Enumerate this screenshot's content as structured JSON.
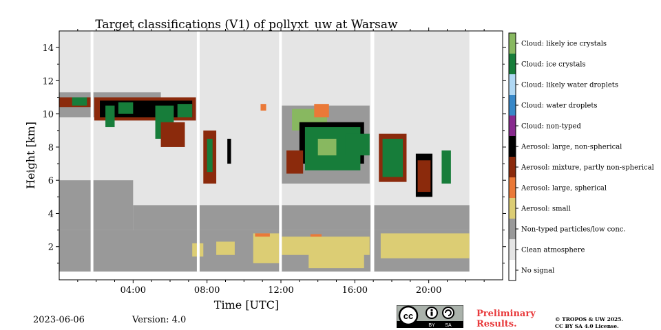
{
  "chart_data": {
    "type": "heatmap",
    "title": "Target classifications (V1) of pollyxt_uw at Warsaw",
    "xlabel": "Time [UTC]",
    "ylabel": "Height [km]",
    "xlim": [
      0,
      24
    ],
    "ylim": [
      0,
      15
    ],
    "xticks": [
      {
        "value": 4,
        "label": "04:00"
      },
      {
        "value": 8,
        "label": "08:00"
      },
      {
        "value": 12,
        "label": "12:00"
      },
      {
        "value": 16,
        "label": "16:00"
      },
      {
        "value": 20,
        "label": "20:00"
      }
    ],
    "yticks": [
      {
        "value": 2,
        "label": "2"
      },
      {
        "value": 4,
        "label": "4"
      },
      {
        "value": 6,
        "label": "6"
      },
      {
        "value": 8,
        "label": "8"
      },
      {
        "value": 10,
        "label": "10"
      },
      {
        "value": 12,
        "label": "12"
      },
      {
        "value": 14,
        "label": "14"
      }
    ],
    "classes": [
      {
        "label": "No signal",
        "color": "#ffffff"
      },
      {
        "label": "Clean atmosphere",
        "color": "#e5e5e5"
      },
      {
        "label": "Non-typed particles/low conc.",
        "color": "#999999"
      },
      {
        "label": "Aerosol: small",
        "color": "#dccd74"
      },
      {
        "label": "Aerosol: large, spherical",
        "color": "#ea7938"
      },
      {
        "label": "Aerosol: mixture, partly non-spherical",
        "color": "#8b2a0c"
      },
      {
        "label": "Aerosol: large, non-spherical",
        "color": "#000000"
      },
      {
        "label": "Cloud: non-typed",
        "color": "#882a8e"
      },
      {
        "label": "Cloud: water droplets",
        "color": "#3888c8"
      },
      {
        "label": "Cloud: likely water droplets",
        "color": "#b0d8f4"
      },
      {
        "label": "Cloud: ice crystals",
        "color": "#177d3a"
      },
      {
        "label": "Cloud: likely ice crystals",
        "color": "#88b860"
      }
    ],
    "data_extent": {
      "t_start": 0,
      "t_end": 22.2,
      "h_bottom": 0.5,
      "h_top": 15
    },
    "gaps": [
      {
        "t0": 1.7,
        "t1": 1.85
      },
      {
        "t0": 7.45,
        "t1": 7.6
      },
      {
        "t0": 11.9,
        "t1": 12.05
      },
      {
        "t0": 16.85,
        "t1": 17.05
      }
    ],
    "regions": [
      {
        "class": 2,
        "t0": 0,
        "t1": 22.2,
        "h0": 0.5,
        "h1": 3.0
      },
      {
        "class": 2,
        "t0": 0,
        "t1": 4.0,
        "h0": 3.0,
        "h1": 6.0
      },
      {
        "class": 2,
        "t0": 4.0,
        "t1": 22.2,
        "h0": 3.0,
        "h1": 4.5
      },
      {
        "class": 3,
        "t0": 7.2,
        "t1": 7.8,
        "h0": 1.4,
        "h1": 2.2
      },
      {
        "class": 3,
        "t0": 8.5,
        "t1": 9.5,
        "h0": 1.5,
        "h1": 2.3
      },
      {
        "class": 3,
        "t0": 10.5,
        "t1": 11.9,
        "h0": 1.0,
        "h1": 2.8
      },
      {
        "class": 3,
        "t0": 12.0,
        "t1": 16.8,
        "h0": 1.5,
        "h1": 2.6
      },
      {
        "class": 3,
        "t0": 13.5,
        "t1": 16.5,
        "h0": 0.7,
        "h1": 1.6
      },
      {
        "class": 3,
        "t0": 17.4,
        "t1": 22.2,
        "h0": 1.3,
        "h1": 2.8
      },
      {
        "class": 4,
        "t0": 10.6,
        "t1": 11.4,
        "h0": 2.6,
        "h1": 2.8
      },
      {
        "class": 4,
        "t0": 13.6,
        "t1": 14.2,
        "h0": 2.6,
        "h1": 2.75
      },
      {
        "class": 2,
        "t0": 0,
        "t1": 5.5,
        "h0": 9.8,
        "h1": 11.3
      },
      {
        "class": 5,
        "t0": 0,
        "t1": 1.8,
        "h0": 10.4,
        "h1": 11.0
      },
      {
        "class": 10,
        "t0": 0.7,
        "t1": 1.5,
        "h0": 10.5,
        "h1": 11.0
      },
      {
        "class": 5,
        "t0": 1.9,
        "t1": 7.4,
        "h0": 9.6,
        "h1": 11.0
      },
      {
        "class": 6,
        "t0": 2.2,
        "t1": 7.2,
        "h0": 9.8,
        "h1": 10.8
      },
      {
        "class": 10,
        "t0": 2.5,
        "t1": 3.0,
        "h0": 9.2,
        "h1": 10.5
      },
      {
        "class": 10,
        "t0": 3.2,
        "t1": 4.0,
        "h0": 10.0,
        "h1": 10.7
      },
      {
        "class": 10,
        "t0": 5.2,
        "t1": 6.2,
        "h0": 8.5,
        "h1": 10.5
      },
      {
        "class": 10,
        "t0": 6.4,
        "t1": 7.2,
        "h0": 9.8,
        "h1": 10.6
      },
      {
        "class": 5,
        "t0": 5.5,
        "t1": 6.8,
        "h0": 8.0,
        "h1": 9.5
      },
      {
        "class": 5,
        "t0": 7.8,
        "t1": 8.5,
        "h0": 5.8,
        "h1": 9.0
      },
      {
        "class": 10,
        "t0": 8.0,
        "t1": 8.3,
        "h0": 6.5,
        "h1": 8.5
      },
      {
        "class": 6,
        "t0": 9.1,
        "t1": 9.3,
        "h0": 7.0,
        "h1": 8.5
      },
      {
        "class": 4,
        "t0": 10.9,
        "t1": 11.2,
        "h0": 10.2,
        "h1": 10.6
      },
      {
        "class": 2,
        "t0": 12.0,
        "t1": 16.8,
        "h0": 5.8,
        "h1": 10.5
      },
      {
        "class": 11,
        "t0": 12.6,
        "t1": 14.5,
        "h0": 9.0,
        "h1": 10.3
      },
      {
        "class": 4,
        "t0": 13.8,
        "t1": 14.6,
        "h0": 9.8,
        "h1": 10.6
      },
      {
        "class": 6,
        "t0": 13.0,
        "t1": 16.5,
        "h0": 7.0,
        "h1": 9.5
      },
      {
        "class": 10,
        "t0": 13.3,
        "t1": 16.3,
        "h0": 6.6,
        "h1": 9.2
      },
      {
        "class": 11,
        "t0": 14.0,
        "t1": 15.0,
        "h0": 7.5,
        "h1": 8.5
      },
      {
        "class": 5,
        "t0": 12.3,
        "t1": 13.2,
        "h0": 6.4,
        "h1": 7.8
      },
      {
        "class": 10,
        "t0": 15.5,
        "t1": 16.8,
        "h0": 7.5,
        "h1": 8.8
      },
      {
        "class": 5,
        "t0": 17.3,
        "t1": 18.8,
        "h0": 5.9,
        "h1": 8.8
      },
      {
        "class": 10,
        "t0": 17.5,
        "t1": 18.6,
        "h0": 6.2,
        "h1": 8.5
      },
      {
        "class": 6,
        "t0": 19.3,
        "t1": 20.2,
        "h0": 5.0,
        "h1": 7.6
      },
      {
        "class": 5,
        "t0": 19.4,
        "t1": 20.1,
        "h0": 5.3,
        "h1": 7.2
      },
      {
        "class": 10,
        "t0": 20.7,
        "t1": 21.2,
        "h0": 5.8,
        "h1": 7.8
      }
    ]
  },
  "footer": {
    "date": "2023-06-06",
    "version": "Version: 4.0",
    "preliminary_line1": "Preliminary",
    "preliminary_line2": "Results.",
    "license_line1": "© TROPOS & UW 2025.",
    "license_line2": "CC BY SA 4.0 License.",
    "cc_badge_text": "cc",
    "cc_by": "BY",
    "cc_sa": "SA"
  }
}
